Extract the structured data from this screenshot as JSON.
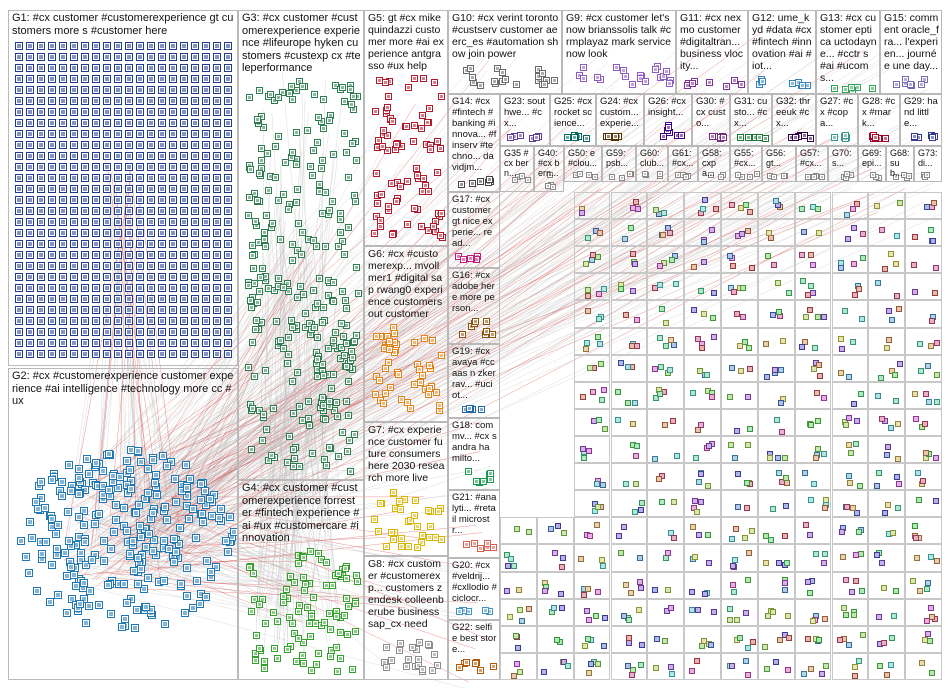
{
  "graph": {
    "groups": [
      {
        "id": "G1",
        "label": "G1: #cx customer #customerexperience gt customers more s #customer here",
        "color": "#1f3a8a",
        "layout": "grid",
        "hub": false
      },
      {
        "id": "G2",
        "label": "G2: #cx #customerexperience customer experience #ai intelligence #technology more cc #ux",
        "color": "#1f78b4",
        "layout": "ring",
        "hub": true
      },
      {
        "id": "G3",
        "label": "G3: #cx customer #customerexperience experience #lifeurope hyken customers #custexp cx #teleperformance",
        "color": "#2e7d4f",
        "layout": "scatter",
        "hub": false
      },
      {
        "id": "G4",
        "label": "G4: #cx customer #customerexperience forrester #fintech experience #ai #ux #customercare #innovation",
        "color": "#33a02c",
        "layout": "scatter",
        "hub": false
      },
      {
        "id": "G5",
        "label": "G5: gt #cx mikequindazzi customer more #ai experience antgrasso #ux help",
        "color": "#b2182b",
        "layout": "scatter",
        "hub": false
      },
      {
        "id": "G6",
        "label": "G6: #cx #customerexp... mvollmer1 #digital sap rwang0 experience customers out customer",
        "color": "#e08214",
        "layout": "scatter",
        "hub": false
      },
      {
        "id": "G7",
        "label": "G7: #cx experience customer future consumers here 2030 research more live",
        "color": "#d9b400",
        "layout": "scatter",
        "hub": false
      },
      {
        "id": "G8",
        "label": "G8: #cx customer #customerexp... customers zendesk colleenberube business sap_cx need",
        "color": "#8c8c8c",
        "layout": "scatter",
        "hub": false
      },
      {
        "id": "G9",
        "label": "G9: #cx customer let's now brianssolis talk #crmplayaz mark servicenow look",
        "color": "#8e5bbf",
        "layout": "scatter",
        "hub": false
      },
      {
        "id": "G10",
        "label": "G10: #cx verint toronto #custserv customer aeerc_es #automation show join power",
        "color": "#6a6a6a",
        "layout": "scatter",
        "hub": false
      },
      {
        "id": "G11",
        "label": "G11: #cx nexmo customer #digitaltran... business vlocity...",
        "color": "#7b3294",
        "layout": "scatter",
        "hub": false
      },
      {
        "id": "G12",
        "label": "G12: ume_kyd #data #cx #fintech #innovation #ai #iot...",
        "color": "#3182bd",
        "layout": "scatter",
        "hub": false
      },
      {
        "id": "G13",
        "label": "G13: #cx customer eptica uctodayne... #cctr s #ai #ucoms...",
        "color": "#31a354",
        "layout": "scatter",
        "hub": false
      },
      {
        "id": "G15",
        "label": "G15: comment oracle_fra... l'experien... journée une day...",
        "color": "#756bb1",
        "layout": "scatter",
        "hub": false
      },
      {
        "id": "G14",
        "label": "G14: #cx #fintech #banking #innova... #finserv #techno... davidjm...",
        "color": "#444444",
        "layout": "scatter",
        "hub": false
      },
      {
        "id": "G17",
        "label": "G17: #cx customer gt nice experie... read...",
        "color": "#c51b7d",
        "layout": "scatter",
        "hub": false
      },
      {
        "id": "G16",
        "label": "G16: #cx adobe here more person...",
        "color": "#8c510a",
        "layout": "scatter",
        "hub": false
      },
      {
        "id": "G19",
        "label": "G19: #cx avaya #ccaas n zkerrav... #uciot...",
        "color": "#2166ac",
        "layout": "scatter",
        "hub": false
      },
      {
        "id": "G18",
        "label": "G18: commv... #cx sandra hamilto...",
        "color": "#1a9850",
        "layout": "scatter",
        "hub": false
      },
      {
        "id": "G21",
        "label": "G21: #analyti... #retail microstr...",
        "color": "#d6604d",
        "layout": "scatter",
        "hub": false
      },
      {
        "id": "G20",
        "label": "G20: #cx #veldrij... #cxllodio #ciclocr...",
        "color": "#4393c3",
        "layout": "scatter",
        "hub": false
      },
      {
        "id": "G22",
        "label": "G22: selfie best store...",
        "color": "#b35806",
        "layout": "scatter",
        "hub": false
      },
      {
        "id": "G23",
        "label": "G23: southwe... #cx...",
        "color": "#5e3c99",
        "layout": "scatter",
        "hub": false
      },
      {
        "id": "G25",
        "label": "G25: #cx rocket science...",
        "color": "#01665e",
        "layout": "scatter",
        "hub": false
      },
      {
        "id": "G24",
        "label": "G24: #cx custom... experie...",
        "color": "#543005",
        "layout": "scatter",
        "hub": false
      },
      {
        "id": "G26",
        "label": "G26: #cx insight...",
        "color": "#3f007d",
        "layout": "scatter",
        "hub": false
      },
      {
        "id": "G30",
        "label": "G30: #cx custo...",
        "color": "#762a83",
        "layout": "scatter",
        "hub": false
      },
      {
        "id": "G31",
        "label": "G31: custo... #cx...",
        "color": "#1b7837",
        "layout": "scatter",
        "hub": false
      },
      {
        "id": "G32",
        "label": "G32: threeuk #cx...",
        "color": "#2d004b",
        "layout": "scatter",
        "hub": false
      },
      {
        "id": "G27",
        "label": "G27: #cx #copa...",
        "color": "#35978f",
        "layout": "scatter",
        "hub": false
      },
      {
        "id": "G28",
        "label": "G28: #cx #mark...",
        "color": "#a50026",
        "layout": "scatter",
        "hub": false
      },
      {
        "id": "G29",
        "label": "G29: hand little...",
        "color": "#313695",
        "layout": "scatter",
        "hub": false
      }
    ],
    "small_groups": [
      {
        "id": "G35",
        "label": "G35 #cx bern...",
        "color": "#555555"
      },
      {
        "id": "G40",
        "label": "G40: #cx bern...",
        "color": "#666666"
      },
      {
        "id": "G50",
        "label": "G50: e #clou...",
        "color": "#7f3b08"
      },
      {
        "id": "G59",
        "label": "G59: psb...",
        "color": "#225ea8"
      },
      {
        "id": "G60",
        "label": "G60: club...",
        "color": "#41ab5d"
      },
      {
        "id": "G61",
        "label": "G61: #cx...",
        "color": "#6a51a3"
      },
      {
        "id": "G58",
        "label": "G58: cxpa...",
        "color": "#c2a5cf"
      },
      {
        "id": "G55",
        "label": "G55: #cx...",
        "color": "#9970ab"
      },
      {
        "id": "G56",
        "label": "G56: gt...",
        "color": "#5aae61"
      },
      {
        "id": "G57",
        "label": "G57: #cx...",
        "color": "#de77ae"
      },
      {
        "id": "G70",
        "label": "G70: s...",
        "color": "#4d9221"
      },
      {
        "id": "G69",
        "label": "G69: epi...",
        "color": "#8073ac"
      },
      {
        "id": "G68",
        "label": "G68: sub...",
        "color": "#e08214"
      },
      {
        "id": "G73",
        "label": "G73: di...",
        "color": "#542788"
      }
    ],
    "edge_color": "#bdbdbd",
    "intergroup_edge_color": "#d62728"
  }
}
